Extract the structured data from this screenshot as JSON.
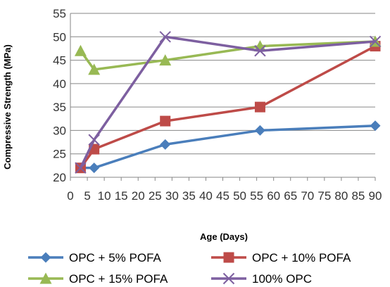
{
  "chart_data": {
    "type": "line",
    "xlabel": "Age (Days)",
    "ylabel": "Compressive Strength (MPa)",
    "xlim": [
      0,
      90
    ],
    "ylim": [
      20,
      55
    ],
    "x_ticks": [
      0,
      5,
      10,
      15,
      20,
      25,
      30,
      35,
      40,
      45,
      50,
      55,
      60,
      65,
      70,
      75,
      80,
      85,
      90
    ],
    "y_ticks": [
      20,
      25,
      30,
      35,
      40,
      45,
      50,
      55
    ],
    "grid": {
      "x": false,
      "y": true
    },
    "legend": "bottom",
    "series": [
      {
        "name": "OPC + 5% POFA",
        "color": "#4A7EBB",
        "marker": "diamond",
        "x": [
          3,
          7,
          28,
          56,
          90
        ],
        "y": [
          22,
          22,
          27,
          30,
          31
        ]
      },
      {
        "name": "OPC + 10% POFA",
        "color": "#BE4B48",
        "marker": "square",
        "x": [
          3,
          7,
          28,
          56,
          90
        ],
        "y": [
          22,
          26,
          32,
          35,
          48
        ]
      },
      {
        "name": "OPC + 15% POFA",
        "color": "#98B954",
        "marker": "triangle",
        "x": [
          3,
          7,
          28,
          56,
          90
        ],
        "y": [
          47,
          43,
          45,
          48,
          49
        ]
      },
      {
        "name": "100% OPC",
        "color": "#7D5FA0",
        "marker": "x",
        "x": [
          3,
          7,
          28,
          56,
          90
        ],
        "y": [
          22,
          28,
          50,
          47,
          49
        ]
      }
    ]
  }
}
